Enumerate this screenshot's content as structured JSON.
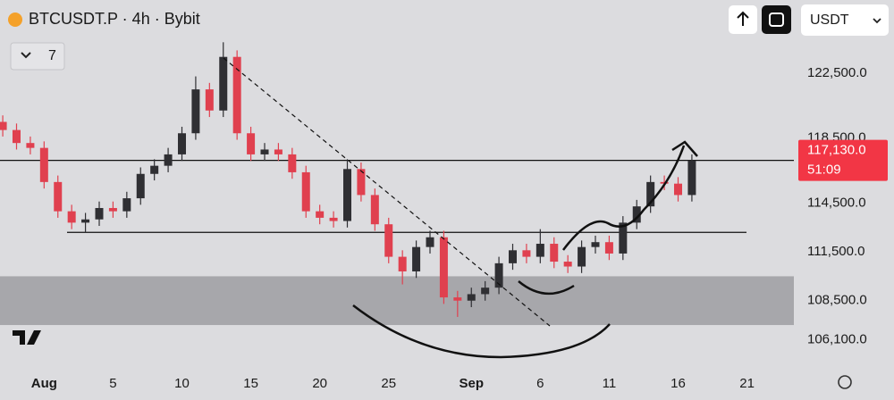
{
  "header": {
    "title": "BTCUSDT.P · 4h · Bybit",
    "indicator_count": "7",
    "currency": "USDT"
  },
  "chart_data": {
    "type": "candlestick",
    "x": [
      -3,
      -2,
      -1,
      0,
      1,
      2,
      3,
      4,
      5,
      6,
      7,
      8,
      9,
      10,
      11,
      12,
      13,
      14,
      15,
      16,
      17,
      18,
      19,
      20,
      21,
      22,
      23,
      24,
      25,
      26,
      27,
      28,
      29,
      30,
      31,
      32,
      33,
      34,
      35,
      36,
      37,
      38,
      39,
      40,
      41,
      42,
      43,
      44,
      45,
      46,
      47
    ],
    "open": [
      119500,
      119000,
      118200,
      117900,
      115800,
      114000,
      113300,
      113500,
      114200,
      114000,
      114800,
      116300,
      116800,
      117500,
      118800,
      121500,
      120200,
      123500,
      118800,
      117500,
      117800,
      117500,
      116400,
      114000,
      113600,
      113400,
      116600,
      115000,
      113200,
      111200,
      110300,
      111800,
      112400,
      108700,
      108500,
      108900,
      109300,
      110800,
      111600,
      111200,
      112000,
      110900,
      110600,
      111800,
      112100,
      111400,
      113300,
      114300,
      115800,
      115700,
      115000
    ],
    "high": [
      119900,
      119400,
      118600,
      118300,
      116200,
      114400,
      113900,
      114600,
      114600,
      115200,
      116700,
      117200,
      117900,
      119200,
      122300,
      121900,
      124400,
      123900,
      119200,
      118200,
      118200,
      117900,
      116800,
      114400,
      114000,
      117200,
      117000,
      115400,
      113600,
      111600,
      112200,
      112800,
      112800,
      109100,
      109300,
      109700,
      111200,
      112000,
      112000,
      112900,
      112400,
      111300,
      112200,
      112500,
      112500,
      113700,
      114700,
      116200,
      116200,
      116100,
      117500
    ],
    "low": [
      118600,
      117800,
      117500,
      115400,
      113600,
      112900,
      112700,
      113100,
      113600,
      113600,
      114400,
      115900,
      116400,
      117100,
      118400,
      119800,
      119800,
      118400,
      117100,
      117100,
      117100,
      116000,
      113600,
      113200,
      113000,
      113000,
      114600,
      112800,
      110800,
      109500,
      109900,
      111400,
      108300,
      107500,
      108100,
      108500,
      108900,
      110400,
      110800,
      110800,
      110500,
      110200,
      110200,
      111400,
      111000,
      111000,
      112900,
      113900,
      115300,
      114600,
      114600
    ],
    "close": [
      119000,
      118200,
      117900,
      115800,
      114000,
      113300,
      113500,
      114200,
      114000,
      114800,
      116300,
      116800,
      117500,
      118800,
      121500,
      120200,
      123500,
      118800,
      117500,
      117800,
      117500,
      116400,
      114000,
      113600,
      113400,
      116600,
      115000,
      113200,
      111200,
      110300,
      111800,
      112400,
      108700,
      108500,
      108900,
      109300,
      110800,
      111600,
      111200,
      112000,
      110900,
      110600,
      111800,
      112100,
      111400,
      113300,
      114300,
      115800,
      115700,
      115000,
      117130
    ],
    "up_color": "#2f2f33",
    "down_color": "#e0404f",
    "xlim": [
      -3.2,
      54.4
    ],
    "xticks": [
      {
        "value": 0,
        "label": "Aug"
      },
      5,
      10,
      15,
      20,
      25,
      {
        "value": 31,
        "label": "Sep"
      },
      {
        "value": 36,
        "label": "6"
      },
      {
        "value": 41,
        "label": "11"
      },
      {
        "value": 46,
        "label": "16"
      },
      {
        "value": 51,
        "label": "21"
      }
    ],
    "ylim": [
      104200,
      127000
    ],
    "yticks": [
      {
        "value": 122500,
        "label": "122,500.0"
      },
      {
        "value": 118500,
        "label": "118,500.0"
      },
      {
        "value": 114500,
        "label": "114,500.0"
      },
      {
        "value": 111500,
        "label": "111,500.0"
      },
      {
        "value": 108500,
        "label": "108,500.0"
      },
      {
        "value": 106100,
        "label": "106,100.0"
      }
    ],
    "last_price": {
      "value": 117130,
      "label": "117,130.0"
    },
    "countdown": "51:09",
    "levels": [
      117130,
      112700
    ],
    "zone": [
      107000,
      110000
    ]
  }
}
